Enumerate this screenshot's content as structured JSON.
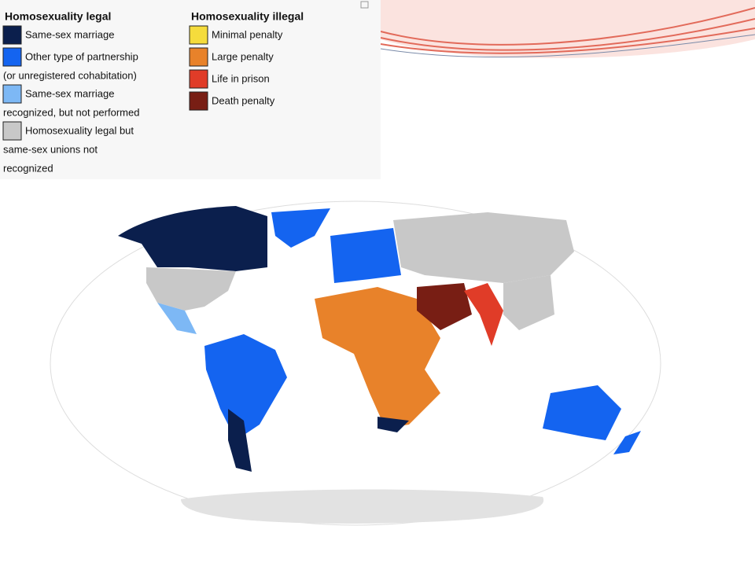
{
  "legend": {
    "groups": [
      {
        "title": "Homosexuality legal",
        "items": [
          {
            "lines": [
              "Same-sex marriage"
            ],
            "color": "#0b1f4d"
          },
          {
            "lines": [
              "Other type of partnership",
              "(or unregistered cohabitation)"
            ],
            "color": "#1464f0"
          },
          {
            "lines": [
              "Same-sex marriage",
              "recognized, but not performed"
            ],
            "color": "#7db8f5"
          },
          {
            "lines": [
              "Homosexuality legal but",
              "same-sex unions not",
              "recognized"
            ],
            "color": "#c8c8c8"
          }
        ]
      },
      {
        "title": "Homosexuality illegal",
        "items": [
          {
            "lines": [
              "Minimal penalty"
            ],
            "color": "#f5dc3c"
          },
          {
            "lines": [
              "Large penalty"
            ],
            "color": "#e8822a"
          },
          {
            "lines": [
              "Life in prison"
            ],
            "color": "#e03c28"
          },
          {
            "lines": [
              "Death penalty"
            ],
            "color": "#781e14"
          }
        ]
      }
    ]
  }
}
